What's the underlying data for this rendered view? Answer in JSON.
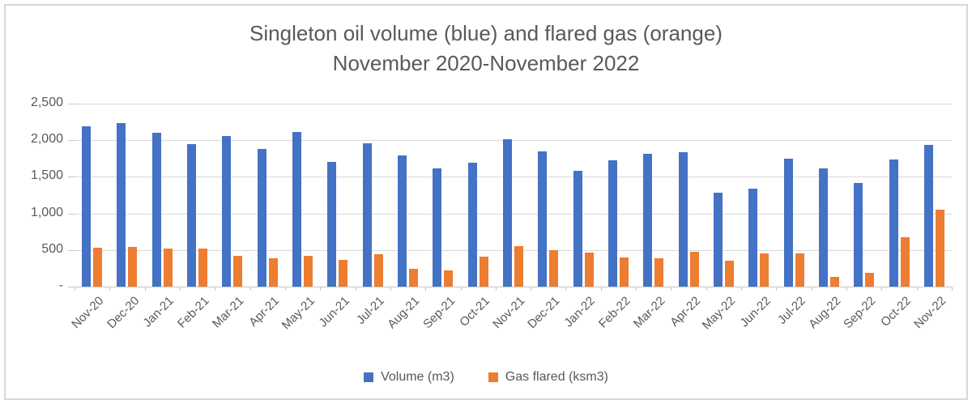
{
  "title": {
    "line1": "Singleton oil volume (blue) and flared gas (orange)",
    "line2": "November 2020-November 2022"
  },
  "colors": {
    "volume_blue": "#4472C4",
    "gas_orange": "#ED7D31",
    "gridline": "#D9D9D9",
    "axis_text": "#595959"
  },
  "chart_data": {
    "type": "bar",
    "title": "Singleton oil volume (blue) and flared gas (orange) November 2020-November 2022",
    "categories": [
      "Nov-20",
      "Dec-20",
      "Jan-21",
      "Feb-21",
      "Mar-21",
      "Apr-21",
      "May-21",
      "Jun-21",
      "Jul-21",
      "Aug-21",
      "Sep-21",
      "Oct-21",
      "Nov-21",
      "Dec-21",
      "Jan-22",
      "Feb-22",
      "Mar-22",
      "Apr-22",
      "May-22",
      "Jun-22",
      "Jul-22",
      "Aug-22",
      "Sep-22",
      "Oct-22",
      "Nov-22"
    ],
    "series": [
      {
        "name": "Volume (m3)",
        "color": "#4472C4",
        "values": [
          2190,
          2230,
          2100,
          1945,
          2060,
          1875,
          2110,
          1705,
          1955,
          1790,
          1615,
          1690,
          2015,
          1845,
          1585,
          1730,
          1815,
          1840,
          1285,
          1340,
          1750,
          1610,
          1420,
          1740,
          1935
        ]
      },
      {
        "name": "Gas flared (ksm3)",
        "color": "#ED7D31",
        "values": [
          535,
          540,
          525,
          525,
          425,
          385,
          415,
          370,
          440,
          240,
          220,
          405,
          555,
          500,
          465,
          400,
          385,
          480,
          350,
          455,
          455,
          135,
          190,
          670,
          1050
        ]
      }
    ],
    "ylim": [
      0,
      2500
    ],
    "ytick_interval": 500,
    "ytick_labels_top_to_bottom": [
      "2,500",
      "2,000",
      "1,500",
      "1,000",
      "500",
      "-"
    ],
    "xlabel": "",
    "ylabel": "",
    "grid": true,
    "legend_position": "bottom"
  }
}
